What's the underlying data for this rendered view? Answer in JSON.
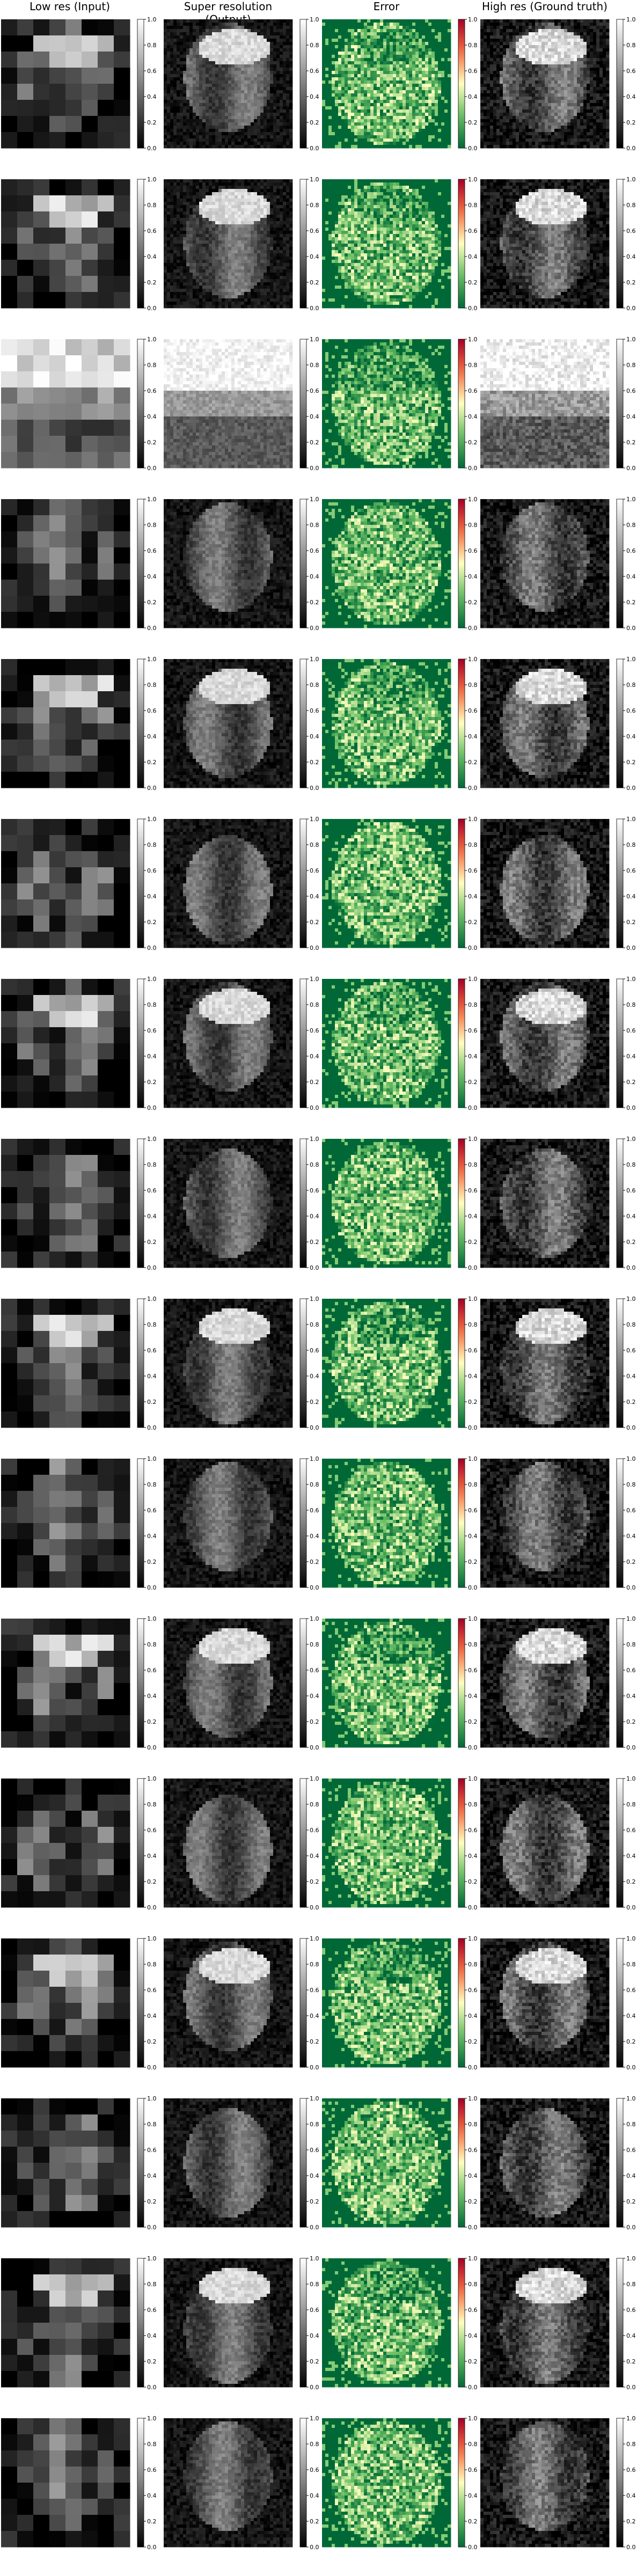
{
  "figure": {
    "column_titles": [
      "Low res (Input)",
      "Super resolution (Output)",
      "Error",
      "High res (Ground truth)"
    ]
  },
  "chart_data": {
    "type": "heatmap",
    "title": "",
    "columns": [
      "Low res (Input)",
      "Super resolution (Output)",
      "Error",
      "High res (Ground truth)"
    ],
    "colormaps": {
      "Low res (Input)": "gray",
      "Super resolution (Output)": "gray",
      "Error": "RdYlGn_r",
      "High res (Ground truth)": "gray"
    },
    "colorbar": {
      "range": [
        0.0,
        1.0
      ],
      "ticks": [
        "0.0",
        "0.2",
        "0.4",
        "0.6",
        "0.8",
        "1.0"
      ]
    },
    "num_rows": 16,
    "low_res_grid_size": 8,
    "axes_visible": false
  }
}
